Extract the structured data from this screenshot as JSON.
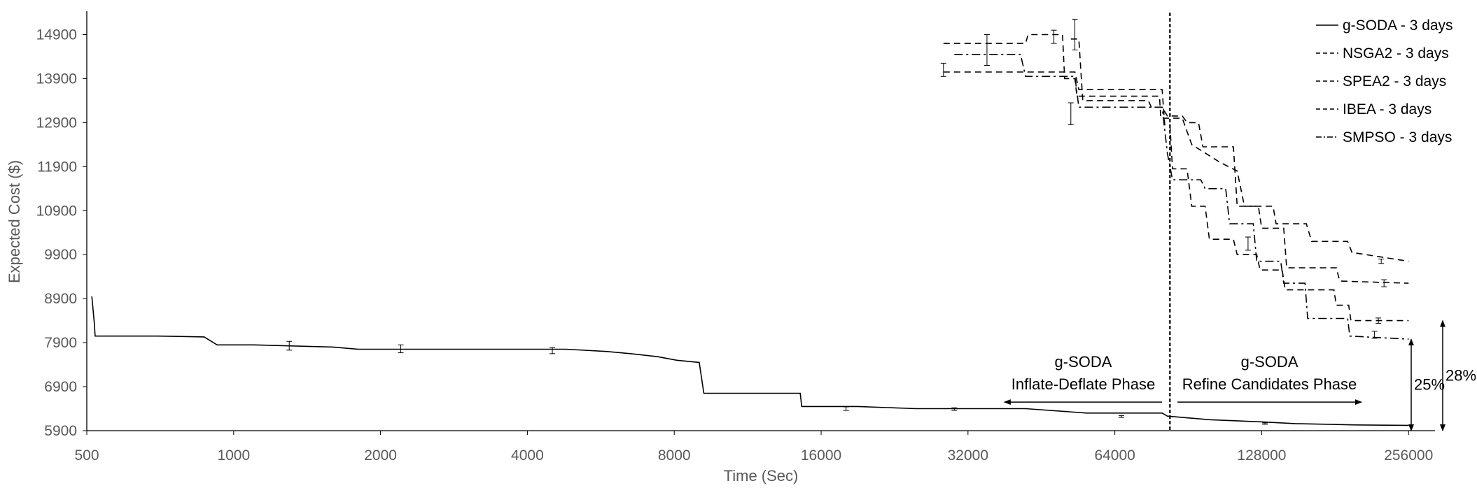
{
  "chart_data": {
    "type": "line",
    "xlabel": "Time (Sec)",
    "ylabel": "Expected Cost ($)",
    "x_scale": "log2",
    "xlim": [
      500,
      290000
    ],
    "ylim": [
      5900,
      15400
    ],
    "x_ticks": [
      "500",
      "1000",
      "2000",
      "4000",
      "8000",
      "16000",
      "32000",
      "64000",
      "128000",
      "256000"
    ],
    "y_ticks": [
      "5900",
      "6900",
      "7900",
      "8900",
      "9900",
      "10900",
      "11900",
      "12900",
      "13900",
      "14900"
    ],
    "grid": false,
    "legend_position": "top-right",
    "colors": {
      "axis": "#000000",
      "tick_text": "#595959",
      "series": "#000000"
    },
    "series": [
      {
        "name": "g-SODA - 3 days",
        "style": "solid",
        "points": [
          [
            512,
            8950
          ],
          [
            518,
            8350
          ],
          [
            520,
            8050
          ],
          [
            700,
            8050
          ],
          [
            870,
            8030
          ],
          [
            925,
            7850
          ],
          [
            1100,
            7850
          ],
          [
            1600,
            7800
          ],
          [
            1800,
            7750
          ],
          [
            3000,
            7750
          ],
          [
            4800,
            7750
          ],
          [
            5800,
            7700
          ],
          [
            6500,
            7650
          ],
          [
            7400,
            7580
          ],
          [
            8100,
            7500
          ],
          [
            9000,
            7450
          ],
          [
            9200,
            6750
          ],
          [
            14500,
            6750
          ],
          [
            14600,
            6450
          ],
          [
            19000,
            6450
          ],
          [
            25000,
            6400
          ],
          [
            42000,
            6400
          ],
          [
            56000,
            6300
          ],
          [
            80000,
            6300
          ],
          [
            82000,
            6230
          ],
          [
            100000,
            6150
          ],
          [
            128000,
            6100
          ],
          [
            150000,
            6060
          ],
          [
            200000,
            6030
          ],
          [
            256000,
            6020
          ]
        ],
        "error_bars": [
          [
            1300,
            7830,
            100
          ],
          [
            2200,
            7760,
            90
          ],
          [
            4500,
            7720,
            70
          ],
          [
            18000,
            6400,
            40
          ],
          [
            30000,
            6390,
            30
          ],
          [
            66000,
            6220,
            20
          ],
          [
            130000,
            6060,
            15
          ]
        ]
      },
      {
        "name": "NSGA2 - 3 days",
        "style": "dashed",
        "points": [
          [
            28500,
            14700
          ],
          [
            42000,
            14700
          ],
          [
            42500,
            14900
          ],
          [
            50000,
            14900
          ],
          [
            50500,
            13900
          ],
          [
            53000,
            13900
          ],
          [
            53500,
            13500
          ],
          [
            79000,
            13500
          ],
          [
            79500,
            13000
          ],
          [
            88000,
            13000
          ],
          [
            92000,
            12400
          ],
          [
            105000,
            12000
          ],
          [
            114000,
            11800
          ],
          [
            118000,
            11000
          ],
          [
            135000,
            11000
          ],
          [
            137000,
            10600
          ],
          [
            158000,
            10600
          ],
          [
            162000,
            10200
          ],
          [
            192000,
            10200
          ],
          [
            196000,
            9950
          ],
          [
            256000,
            9750
          ]
        ],
        "error_bars": [
          [
            48000,
            14850,
            150
          ],
          [
            225000,
            9750,
            50
          ]
        ]
      },
      {
        "name": "SPEA2 - 3 days",
        "style": "dashed",
        "points": [
          [
            52000,
            14800
          ],
          [
            54000,
            14800
          ],
          [
            55000,
            13400
          ],
          [
            75000,
            13400
          ],
          [
            76000,
            13250
          ],
          [
            80000,
            13250
          ],
          [
            82000,
            13050
          ],
          [
            88000,
            13050
          ],
          [
            90000,
            12900
          ],
          [
            95000,
            12900
          ],
          [
            97000,
            12350
          ],
          [
            112000,
            12350
          ],
          [
            114000,
            11000
          ],
          [
            126000,
            11000
          ],
          [
            128000,
            10500
          ],
          [
            142000,
            10500
          ],
          [
            144000,
            9600
          ],
          [
            182000,
            9600
          ],
          [
            185000,
            9300
          ],
          [
            256000,
            9250
          ]
        ],
        "error_bars": [
          [
            53000,
            14900,
            350
          ],
          [
            228000,
            9250,
            80
          ]
        ]
      },
      {
        "name": "IBEA - 3 days",
        "style": "dashed",
        "points": [
          [
            28500,
            14050
          ],
          [
            53000,
            14050
          ],
          [
            54000,
            13650
          ],
          [
            80000,
            13650
          ],
          [
            81000,
            12850
          ],
          [
            83000,
            12850
          ],
          [
            84000,
            11850
          ],
          [
            90000,
            11850
          ],
          [
            92000,
            11000
          ],
          [
            98000,
            11000
          ],
          [
            100000,
            10250
          ],
          [
            112000,
            10250
          ],
          [
            114000,
            9900
          ],
          [
            125000,
            9900
          ],
          [
            127000,
            9550
          ],
          [
            141000,
            9550
          ],
          [
            143000,
            9100
          ],
          [
            180000,
            9100
          ],
          [
            182000,
            8750
          ],
          [
            193000,
            8750
          ],
          [
            195000,
            8400
          ],
          [
            256000,
            8400
          ]
        ],
        "error_bars": [
          [
            28500,
            14100,
            150
          ],
          [
            120000,
            10150,
            150
          ],
          [
            222000,
            8400,
            60
          ]
        ]
      },
      {
        "name": "SMPSO - 3 days",
        "style": "dashdot",
        "points": [
          [
            30000,
            14450
          ],
          [
            41000,
            14450
          ],
          [
            42000,
            13950
          ],
          [
            53000,
            13950
          ],
          [
            54000,
            13250
          ],
          [
            80000,
            13250
          ],
          [
            82000,
            12200
          ],
          [
            84000,
            11600
          ],
          [
            96000,
            11600
          ],
          [
            98000,
            11400
          ],
          [
            108000,
            11400
          ],
          [
            110000,
            10600
          ],
          [
            123000,
            10600
          ],
          [
            125000,
            9750
          ],
          [
            140000,
            9750
          ],
          [
            142000,
            9250
          ],
          [
            157000,
            9250
          ],
          [
            159000,
            8450
          ],
          [
            192000,
            8450
          ],
          [
            194000,
            8050
          ],
          [
            256000,
            7980
          ]
        ],
        "error_bars": [
          [
            35000,
            14550,
            350
          ],
          [
            52000,
            13100,
            250
          ],
          [
            218000,
            8080,
            80
          ]
        ]
      }
    ],
    "divider_x": 83000,
    "annotations": [
      {
        "id": "inflate",
        "lines": [
          "g-SODA",
          "Inflate-Deflate Phase"
        ],
        "arrow_from": 80000,
        "arrow_to": 38000,
        "arrow_y": 6550
      },
      {
        "id": "refine",
        "lines": [
          "g-SODA",
          "Refine Candidates Phase"
        ],
        "arrow_from": 86000,
        "arrow_to": 205000,
        "arrow_y": 6550
      },
      {
        "id": "pct25",
        "label": "25%",
        "y_top": 7980,
        "y_bottom": 5900
      },
      {
        "id": "pct28",
        "label": "28%",
        "y_top": 8400,
        "y_bottom": 5900
      }
    ]
  }
}
